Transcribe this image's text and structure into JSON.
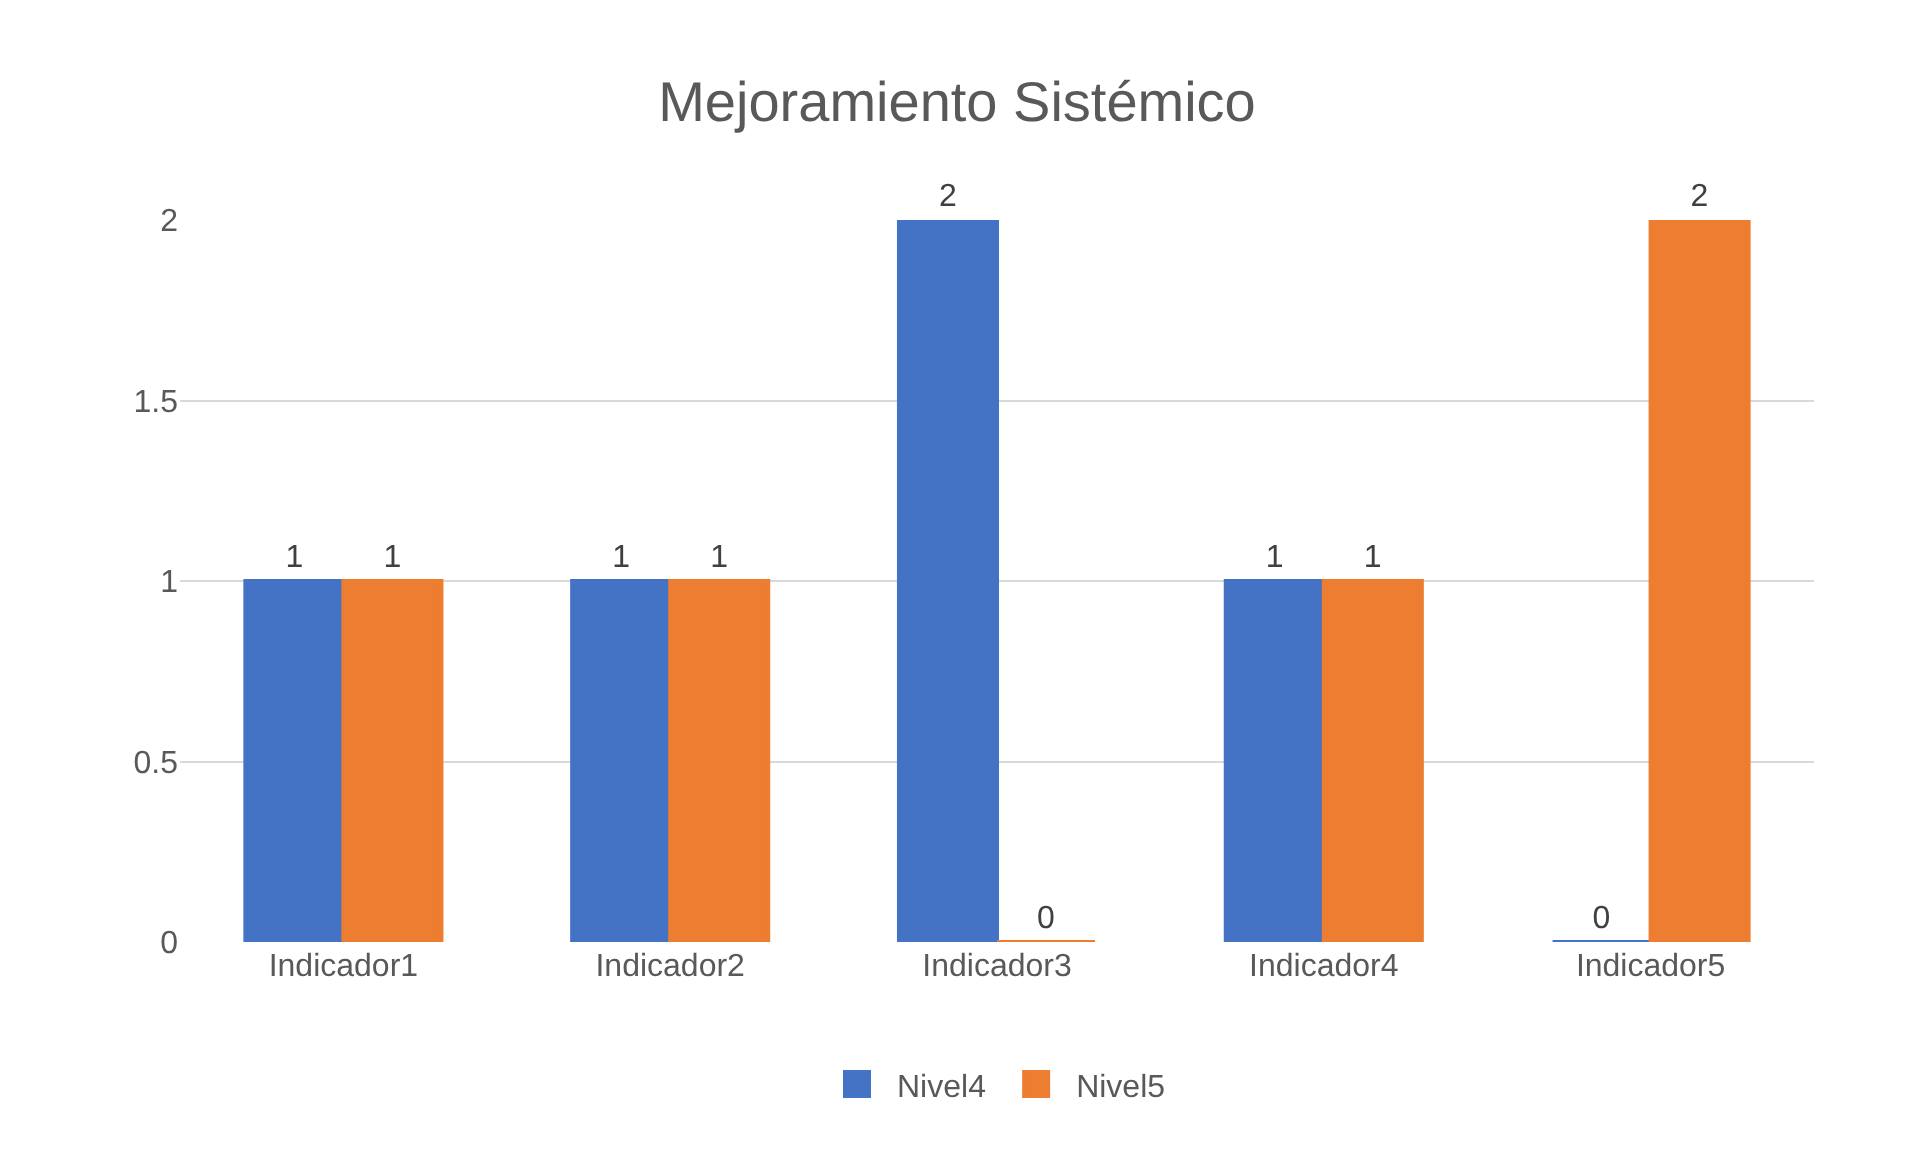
{
  "chart_data": {
    "type": "bar",
    "title": "Mejoramiento Sistémico",
    "categories": [
      "Indicador1",
      "Indicador2",
      "Indicador3",
      "Indicador4",
      "Indicador5"
    ],
    "series": [
      {
        "name": "Nivel4",
        "color": "#4472c4",
        "values": [
          1,
          1,
          2,
          1,
          0
        ]
      },
      {
        "name": "Nivel5",
        "color": "#ed7d31",
        "values": [
          1,
          1,
          0,
          1,
          2
        ]
      }
    ],
    "ylim": [
      0,
      2
    ],
    "yticks": [
      0,
      0.5,
      1,
      1.5,
      2
    ],
    "grid": "y",
    "legend": "bottom",
    "data_labels": true
  }
}
